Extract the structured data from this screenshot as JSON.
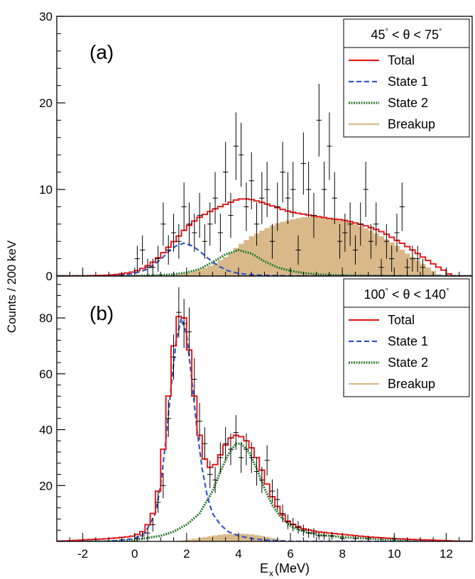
{
  "figure": {
    "ylabel": "Counts / 200 keV",
    "xlabel_main": "E",
    "xlabel_sub": "x",
    "xlabel_unit": " (MeV)"
  },
  "colors": {
    "total": "#e41a1c",
    "state1": "#3355cc",
    "state2": "#2e7d32",
    "breakup": "#d9b98a",
    "data": "#000000"
  },
  "chart_data": [
    {
      "type": "histogram",
      "panel_label": "(a)",
      "angle_range": {
        "low": "45",
        "high": "75",
        "symbol": "θ",
        "rel": "<",
        "deg": "°"
      },
      "xlim": [
        -3,
        13
      ],
      "ylim": [
        0,
        30
      ],
      "yticks": [
        0,
        10,
        20,
        30
      ],
      "xticks": [
        -2,
        0,
        2,
        4,
        6,
        8,
        10,
        12
      ],
      "legend": [
        "Total",
        "State 1",
        "State 2",
        "Breakup"
      ],
      "bin_width": 0.2,
      "breakup": {
        "x": [
          0.6,
          1.0,
          1.5,
          2.0,
          2.5,
          3.0,
          3.5,
          4.0,
          4.5,
          5.0,
          5.5,
          6.0,
          6.5,
          7.0,
          7.5,
          8.0,
          8.5,
          9.0,
          9.5,
          10.0,
          10.5,
          11.0,
          11.5,
          11.8
        ],
        "y": [
          0,
          0,
          0.1,
          0.3,
          0.7,
          1.3,
          2.2,
          3.5,
          4.6,
          5.4,
          6.1,
          6.5,
          6.8,
          6.9,
          6.7,
          6.4,
          6.0,
          5.4,
          4.6,
          3.7,
          2.6,
          1.6,
          0.6,
          0
        ]
      },
      "state1": {
        "x": [
          -1.5,
          -0.5,
          0,
          0.5,
          1.0,
          1.3,
          1.6,
          1.9,
          2.2,
          2.5,
          2.8,
          3.2,
          3.6,
          4.0,
          4.5,
          5.0,
          6.0,
          7.0
        ],
        "y": [
          0,
          0.1,
          0.3,
          0.8,
          1.9,
          2.8,
          3.5,
          3.8,
          3.5,
          2.9,
          2.1,
          1.2,
          0.6,
          0.3,
          0.15,
          0.08,
          0.02,
          0
        ]
      },
      "state2": {
        "x": [
          -0.5,
          0.5,
          1.0,
          1.5,
          2.0,
          2.5,
          3.0,
          3.5,
          4.0,
          4.5,
          5.0,
          5.5,
          6.0,
          6.5,
          7.0,
          7.5,
          8.0,
          9.0,
          10.0,
          11.0,
          12.0
        ],
        "y": [
          0,
          0.05,
          0.1,
          0.2,
          0.4,
          0.8,
          1.6,
          2.5,
          3.0,
          2.6,
          1.7,
          1.0,
          0.6,
          0.35,
          0.2,
          0.12,
          0.08,
          0.04,
          0.02,
          0.01,
          0
        ]
      },
      "total": {
        "x": [
          -3,
          -2,
          -1,
          -0.5,
          0,
          0.4,
          0.8,
          1.2,
          1.6,
          2.0,
          2.4,
          2.8,
          3.2,
          3.6,
          4.0,
          4.4,
          4.8,
          5.2,
          5.6,
          6.0,
          6.4,
          6.8,
          7.2,
          7.6,
          8.0,
          8.4,
          8.8,
          9.2,
          9.6,
          10.0,
          10.4,
          10.8,
          11.2,
          11.6,
          12.0,
          12.2,
          13.0
        ],
        "y": [
          0,
          0,
          0.1,
          0.25,
          0.5,
          1.0,
          1.8,
          3.0,
          4.3,
          5.6,
          6.6,
          7.3,
          7.9,
          8.4,
          8.9,
          8.9,
          8.6,
          8.2,
          7.8,
          7.4,
          7.2,
          7.0,
          6.8,
          6.6,
          6.5,
          6.2,
          5.9,
          5.5,
          5.0,
          4.3,
          3.6,
          2.8,
          2.0,
          1.2,
          0.5,
          0,
          0
        ]
      },
      "points": [
        {
          "x": 0.1,
          "y": 2,
          "e": 1.5
        },
        {
          "x": 0.3,
          "y": 3,
          "e": 1.7
        },
        {
          "x": 0.5,
          "y": 1,
          "e": 1.0
        },
        {
          "x": 0.7,
          "y": 1,
          "e": 1.0
        },
        {
          "x": 0.9,
          "y": 2,
          "e": 1.5
        },
        {
          "x": 1.1,
          "y": 6,
          "e": 2.5
        },
        {
          "x": 1.3,
          "y": 3,
          "e": 1.7
        },
        {
          "x": 1.5,
          "y": 5,
          "e": 2.2
        },
        {
          "x": 1.7,
          "y": 4,
          "e": 2.0
        },
        {
          "x": 1.9,
          "y": 8,
          "e": 2.8
        },
        {
          "x": 2.1,
          "y": 6,
          "e": 2.5
        },
        {
          "x": 2.3,
          "y": 5,
          "e": 2.2
        },
        {
          "x": 2.5,
          "y": 7,
          "e": 2.6
        },
        {
          "x": 2.7,
          "y": 4,
          "e": 2.0
        },
        {
          "x": 2.9,
          "y": 6,
          "e": 2.5
        },
        {
          "x": 3.1,
          "y": 9,
          "e": 3.0
        },
        {
          "x": 3.3,
          "y": 5,
          "e": 2.2
        },
        {
          "x": 3.5,
          "y": 12,
          "e": 3.5
        },
        {
          "x": 3.7,
          "y": 7,
          "e": 2.6
        },
        {
          "x": 3.9,
          "y": 15,
          "e": 3.9
        },
        {
          "x": 4.1,
          "y": 14,
          "e": 3.7
        },
        {
          "x": 4.3,
          "y": 8,
          "e": 2.8
        },
        {
          "x": 4.5,
          "y": 11,
          "e": 3.3
        },
        {
          "x": 4.7,
          "y": 6,
          "e": 2.5
        },
        {
          "x": 4.9,
          "y": 9,
          "e": 3.0
        },
        {
          "x": 5.1,
          "y": 10,
          "e": 3.2
        },
        {
          "x": 5.3,
          "y": 4,
          "e": 2.0
        },
        {
          "x": 5.5,
          "y": 8,
          "e": 2.8
        },
        {
          "x": 5.7,
          "y": 12,
          "e": 3.5
        },
        {
          "x": 5.9,
          "y": 9,
          "e": 3.0
        },
        {
          "x": 6.1,
          "y": 10,
          "e": 3.2
        },
        {
          "x": 6.3,
          "y": 3,
          "e": 1.7
        },
        {
          "x": 6.5,
          "y": 13,
          "e": 3.6
        },
        {
          "x": 6.7,
          "y": 10,
          "e": 3.2
        },
        {
          "x": 6.9,
          "y": 7,
          "e": 2.6
        },
        {
          "x": 7.1,
          "y": 18,
          "e": 4.2
        },
        {
          "x": 7.3,
          "y": 10,
          "e": 3.2
        },
        {
          "x": 7.5,
          "y": 15,
          "e": 3.9
        },
        {
          "x": 7.7,
          "y": 9,
          "e": 3.0
        },
        {
          "x": 7.9,
          "y": 4,
          "e": 2.0
        },
        {
          "x": 8.1,
          "y": 5,
          "e": 2.2
        },
        {
          "x": 8.3,
          "y": 6,
          "e": 2.5
        },
        {
          "x": 8.5,
          "y": 3,
          "e": 1.7
        },
        {
          "x": 8.7,
          "y": 6,
          "e": 2.5
        },
        {
          "x": 8.9,
          "y": 10,
          "e": 3.2
        },
        {
          "x": 9.1,
          "y": 4,
          "e": 2.0
        },
        {
          "x": 9.3,
          "y": 6,
          "e": 2.5
        },
        {
          "x": 9.5,
          "y": 1,
          "e": 1.0
        },
        {
          "x": 9.7,
          "y": 4,
          "e": 2.0
        },
        {
          "x": 9.9,
          "y": 2,
          "e": 1.5
        },
        {
          "x": 10.1,
          "y": 5,
          "e": 2.2
        },
        {
          "x": 10.3,
          "y": 8,
          "e": 2.8
        },
        {
          "x": 10.5,
          "y": 1,
          "e": 1.0
        },
        {
          "x": 10.7,
          "y": 2,
          "e": 1.5
        },
        {
          "x": 10.9,
          "y": 2,
          "e": 1.5
        },
        {
          "x": 11.1,
          "y": 1,
          "e": 1.0
        }
      ]
    },
    {
      "type": "histogram",
      "panel_label": "(b)",
      "angle_range": {
        "low": "100",
        "high": "140",
        "symbol": "θ",
        "rel": "<",
        "deg": "°"
      },
      "xlim": [
        -3,
        13
      ],
      "ylim": [
        0,
        95
      ],
      "yticks": [
        0,
        20,
        40,
        60,
        80
      ],
      "xticks": [
        -2,
        0,
        2,
        4,
        6,
        8,
        10,
        12
      ],
      "xtick_labels": [
        "-2",
        "0",
        "2",
        "4",
        "6",
        "8",
        "10",
        "12"
      ],
      "legend": [
        "Total",
        "State 1",
        "State 2",
        "Breakup"
      ],
      "bin_width": 0.2,
      "breakup": {
        "x": [
          1.5,
          2.0,
          2.5,
          3.0,
          3.5,
          4.0,
          4.5,
          5.0,
          5.5,
          6.0
        ],
        "y": [
          0,
          0.5,
          1.2,
          2.0,
          2.6,
          2.8,
          2.5,
          1.8,
          0.8,
          0
        ]
      },
      "state1": {
        "x": [
          -1,
          0,
          0.4,
          0.8,
          1.0,
          1.2,
          1.4,
          1.6,
          1.8,
          2.0,
          2.2,
          2.4,
          2.6,
          2.8,
          3.0,
          3.3,
          3.6,
          4.0,
          4.5,
          5.0,
          6.0
        ],
        "y": [
          0,
          1,
          3,
          10,
          20,
          36,
          55,
          72,
          80,
          74,
          58,
          40,
          26,
          16,
          10,
          6,
          3.5,
          2,
          1,
          0.5,
          0
        ]
      },
      "state2": {
        "x": [
          -1,
          0,
          1,
          1.5,
          2.0,
          2.5,
          3.0,
          3.3,
          3.6,
          3.9,
          4.1,
          4.4,
          4.7,
          5.0,
          5.3,
          5.6,
          6.0,
          6.5,
          7.0,
          8.0,
          9.0,
          10.0,
          11.0,
          12.5
        ],
        "y": [
          0,
          0.5,
          2,
          3.5,
          6,
          10,
          18,
          25,
          31,
          35,
          35,
          32,
          26,
          19,
          13,
          9,
          5.5,
          3.5,
          2.5,
          1.5,
          1,
          0.6,
          0.3,
          0
        ]
      },
      "total": {
        "x": [
          -3,
          -2,
          -1,
          -0.4,
          0,
          0.4,
          0.8,
          1.0,
          1.2,
          1.4,
          1.6,
          1.8,
          2.0,
          2.2,
          2.4,
          2.6,
          2.8,
          3.0,
          3.2,
          3.4,
          3.6,
          3.8,
          4.0,
          4.2,
          4.4,
          4.6,
          4.8,
          5.0,
          5.2,
          5.4,
          5.6,
          5.8,
          6.0,
          6.5,
          7.0,
          7.5,
          8.0,
          9.0,
          10.0,
          11.0,
          12.0,
          12.5,
          13.0
        ],
        "y": [
          0,
          0.5,
          1,
          1.5,
          2,
          4,
          12,
          24,
          42,
          62,
          78,
          83,
          77,
          60,
          44,
          32,
          27,
          26,
          29,
          33,
          36,
          38,
          38,
          37,
          35,
          32,
          28,
          23,
          18,
          14,
          11,
          8,
          6.5,
          4.5,
          3.5,
          3,
          2.5,
          1.6,
          1,
          0.6,
          0.3,
          0,
          0
        ]
      },
      "points": [
        {
          "x": 0.1,
          "y": 1,
          "e": 1.0
        },
        {
          "x": 0.3,
          "y": 2,
          "e": 1.4
        },
        {
          "x": 0.5,
          "y": 3,
          "e": 1.7
        },
        {
          "x": 0.7,
          "y": 6,
          "e": 2.5
        },
        {
          "x": 0.9,
          "y": 14,
          "e": 3.7
        },
        {
          "x": 1.1,
          "y": 20,
          "e": 4.5
        },
        {
          "x": 1.3,
          "y": 44,
          "e": 6.6
        },
        {
          "x": 1.5,
          "y": 66,
          "e": 8.1
        },
        {
          "x": 1.7,
          "y": 82,
          "e": 9.0
        },
        {
          "x": 1.9,
          "y": 78,
          "e": 8.8
        },
        {
          "x": 2.1,
          "y": 75,
          "e": 8.7
        },
        {
          "x": 2.3,
          "y": 58,
          "e": 7.6
        },
        {
          "x": 2.5,
          "y": 43,
          "e": 6.6
        },
        {
          "x": 2.7,
          "y": 35,
          "e": 5.9
        },
        {
          "x": 2.9,
          "y": 24,
          "e": 4.9
        },
        {
          "x": 3.1,
          "y": 22,
          "e": 4.7
        },
        {
          "x": 3.3,
          "y": 30,
          "e": 5.5
        },
        {
          "x": 3.5,
          "y": 35,
          "e": 5.9
        },
        {
          "x": 3.7,
          "y": 33,
          "e": 5.7
        },
        {
          "x": 3.9,
          "y": 39,
          "e": 6.2
        },
        {
          "x": 4.1,
          "y": 30,
          "e": 5.5
        },
        {
          "x": 4.3,
          "y": 33,
          "e": 5.7
        },
        {
          "x": 4.5,
          "y": 30,
          "e": 5.5
        },
        {
          "x": 4.7,
          "y": 25,
          "e": 5.0
        },
        {
          "x": 4.9,
          "y": 22,
          "e": 4.7
        },
        {
          "x": 5.1,
          "y": 29,
          "e": 5.4
        },
        {
          "x": 5.3,
          "y": 18,
          "e": 4.2
        },
        {
          "x": 5.5,
          "y": 15,
          "e": 3.9
        },
        {
          "x": 5.7,
          "y": 10,
          "e": 3.2
        },
        {
          "x": 5.9,
          "y": 7,
          "e": 2.6
        },
        {
          "x": 6.1,
          "y": 6,
          "e": 2.4
        },
        {
          "x": 6.3,
          "y": 5,
          "e": 2.2
        },
        {
          "x": 6.5,
          "y": 4,
          "e": 2.0
        },
        {
          "x": 6.7,
          "y": 3,
          "e": 1.7
        },
        {
          "x": 6.9,
          "y": 3,
          "e": 1.7
        },
        {
          "x": 7.1,
          "y": 2,
          "e": 1.4
        },
        {
          "x": 7.3,
          "y": 2,
          "e": 1.4
        },
        {
          "x": 7.6,
          "y": 2,
          "e": 1.4
        },
        {
          "x": 8.0,
          "y": 1,
          "e": 1.0
        },
        {
          "x": 8.5,
          "y": 1,
          "e": 1.0
        },
        {
          "x": 9.0,
          "y": 1,
          "e": 1.0
        },
        {
          "x": 10.0,
          "y": 1,
          "e": 1.0
        }
      ]
    }
  ]
}
